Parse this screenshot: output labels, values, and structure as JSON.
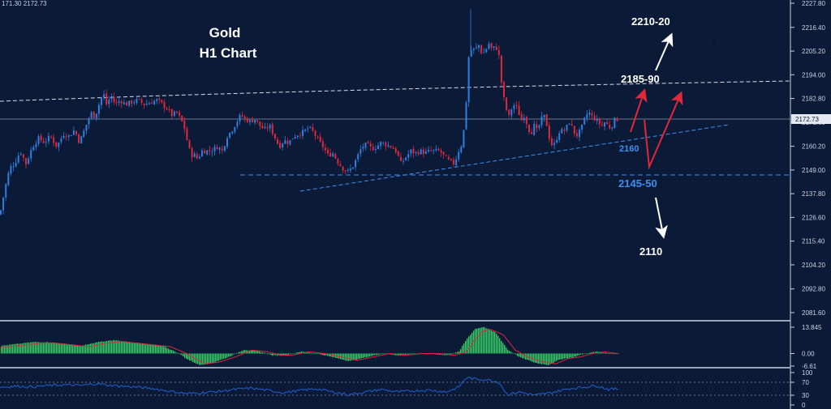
{
  "header": {
    "ohlc_text": "171.30 2172.73"
  },
  "colors": {
    "background": "#0b1a36",
    "bull": "#2f7fe0",
    "bear": "#e0283c",
    "macd_hist": "#33d36a",
    "signal": "#e0283c",
    "rsi": "#1f5fd0",
    "annotation_blue": "#3d8ff0",
    "arrow_red": "#e0283c",
    "arrow_white": "#ffffff"
  },
  "chart_data": [
    {
      "type": "candlestick",
      "title": "Gold",
      "subtitle": "H1 Chart",
      "ylim": [
        2076,
        2230
      ],
      "y_ticks": [
        2227.8,
        2216.4,
        2205.2,
        2194.0,
        2182.8,
        2171.6,
        2160.2,
        2149.0,
        2137.8,
        2126.6,
        2115.4,
        2104.2,
        2092.8,
        2081.6
      ],
      "y_tick_labels": [
        "2227.80",
        "2216.40",
        "2205.20",
        "2194.00",
        "2182.80",
        "2171.60",
        "2160.20",
        "2149.00",
        "2137.80",
        "2126.60",
        "2115.40",
        "2104.20",
        "2092.80",
        "2081.60"
      ],
      "current_price": 2172.73,
      "current_price_label": "2172.73",
      "close_path": [
        [
          0,
          2128
        ],
        [
          6,
          2140
        ],
        [
          12,
          2150
        ],
        [
          18,
          2152
        ],
        [
          25,
          2158
        ],
        [
          32,
          2152
        ],
        [
          40,
          2160
        ],
        [
          47,
          2164
        ],
        [
          55,
          2162
        ],
        [
          62,
          2165
        ],
        [
          70,
          2160
        ],
        [
          78,
          2166
        ],
        [
          85,
          2165
        ],
        [
          92,
          2168
        ],
        [
          98,
          2162
        ],
        [
          104,
          2168
        ],
        [
          108,
          2172
        ],
        [
          112,
          2176
        ],
        [
          117,
          2174
        ],
        [
          120,
          2178
        ],
        [
          124,
          2182
        ],
        [
          127,
          2186
        ],
        [
          131,
          2180
        ],
        [
          137,
          2184
        ],
        [
          142,
          2180
        ],
        [
          148,
          2182
        ],
        [
          155,
          2180
        ],
        [
          162,
          2181
        ],
        [
          170,
          2182
        ],
        [
          178,
          2180
        ],
        [
          186,
          2181
        ],
        [
          194,
          2182
        ],
        [
          200,
          2180
        ],
        [
          206,
          2178
        ],
        [
          212,
          2175
        ],
        [
          218,
          2176
        ],
        [
          224,
          2172
        ],
        [
          228,
          2168
        ],
        [
          232,
          2160
        ],
        [
          236,
          2156
        ],
        [
          240,
          2156
        ],
        [
          244,
          2154
        ],
        [
          248,
          2158
        ],
        [
          252,
          2158
        ],
        [
          260,
          2158
        ],
        [
          268,
          2160
        ],
        [
          274,
          2158
        ],
        [
          280,
          2165
        ],
        [
          286,
          2168
        ],
        [
          292,
          2172
        ],
        [
          297,
          2175
        ],
        [
          302,
          2173
        ],
        [
          308,
          2172
        ],
        [
          314,
          2173
        ],
        [
          320,
          2170
        ],
        [
          326,
          2168
        ],
        [
          332,
          2170
        ],
        [
          338,
          2165
        ],
        [
          344,
          2160
        ],
        [
          350,
          2163
        ],
        [
          356,
          2162
        ],
        [
          362,
          2165
        ],
        [
          368,
          2166
        ],
        [
          374,
          2167
        ],
        [
          380,
          2169
        ],
        [
          386,
          2167
        ],
        [
          392,
          2163
        ],
        [
          398,
          2160
        ],
        [
          404,
          2156
        ],
        [
          410,
          2157
        ],
        [
          416,
          2153
        ],
        [
          422,
          2150
        ],
        [
          428,
          2148
        ],
        [
          434,
          2150
        ],
        [
          440,
          2155
        ],
        [
          446,
          2160
        ],
        [
          452,
          2161
        ],
        [
          458,
          2159
        ],
        [
          464,
          2160
        ],
        [
          470,
          2162
        ],
        [
          476,
          2161
        ],
        [
          482,
          2160
        ],
        [
          488,
          2158
        ],
        [
          494,
          2152
        ],
        [
          500,
          2155
        ],
        [
          506,
          2158
        ],
        [
          512,
          2157
        ],
        [
          518,
          2158
        ],
        [
          524,
          2157
        ],
        [
          530,
          2158
        ],
        [
          536,
          2158
        ],
        [
          542,
          2158
        ],
        [
          548,
          2155
        ],
        [
          554,
          2153
        ],
        [
          560,
          2152
        ],
        [
          565,
          2158
        ],
        [
          570,
          2162
        ],
        [
          574,
          2178
        ],
        [
          578,
          2205
        ],
        [
          582,
          2206
        ],
        [
          586,
          2206
        ],
        [
          590,
          2208
        ],
        [
          594,
          2204
        ],
        [
          598,
          2205
        ],
        [
          602,
          2209
        ],
        [
          606,
          2206
        ],
        [
          610,
          2207
        ],
        [
          614,
          2206
        ],
        [
          618,
          2190
        ],
        [
          622,
          2180
        ],
        [
          627,
          2174
        ],
        [
          632,
          2180
        ],
        [
          638,
          2178
        ],
        [
          642,
          2172
        ],
        [
          646,
          2175
        ],
        [
          650,
          2170
        ],
        [
          654,
          2166
        ],
        [
          658,
          2170
        ],
        [
          662,
          2167
        ],
        [
          666,
          2172
        ],
        [
          670,
          2175
        ],
        [
          674,
          2170
        ],
        [
          678,
          2162
        ],
        [
          682,
          2160
        ],
        [
          686,
          2164
        ],
        [
          690,
          2168
        ],
        [
          694,
          2167
        ],
        [
          698,
          2169
        ],
        [
          702,
          2172
        ],
        [
          706,
          2168
        ],
        [
          710,
          2165
        ],
        [
          714,
          2167
        ],
        [
          718,
          2170
        ],
        [
          722,
          2175
        ],
        [
          726,
          2176
        ],
        [
          730,
          2174
        ],
        [
          734,
          2173
        ],
        [
          738,
          2171
        ],
        [
          742,
          2170
        ],
        [
          746,
          2172
        ],
        [
          750,
          2169
        ],
        [
          754,
          2170
        ],
        [
          758,
          2173
        ],
        [
          762,
          2173
        ]
      ]
    },
    {
      "type": "bar",
      "title": "",
      "ylim": [
        -6.61,
        13.845
      ],
      "y_ticks": [
        13.845,
        0.0,
        -6.61
      ],
      "y_tick_labels": [
        "13.845",
        "0.00",
        "-6.61"
      ],
      "hist_path": [
        [
          0,
          4
        ],
        [
          20,
          5
        ],
        [
          40,
          6
        ],
        [
          60,
          6
        ],
        [
          80,
          5
        ],
        [
          100,
          4
        ],
        [
          120,
          6
        ],
        [
          140,
          7
        ],
        [
          160,
          6
        ],
        [
          180,
          5
        ],
        [
          200,
          4
        ],
        [
          220,
          0
        ],
        [
          230,
          -3
        ],
        [
          245,
          -6
        ],
        [
          260,
          -5
        ],
        [
          280,
          -2
        ],
        [
          300,
          2
        ],
        [
          320,
          1
        ],
        [
          335,
          -1
        ],
        [
          350,
          -1
        ],
        [
          370,
          1
        ],
        [
          390,
          0
        ],
        [
          410,
          -2
        ],
        [
          430,
          -4
        ],
        [
          450,
          -2
        ],
        [
          470,
          0
        ],
        [
          490,
          -1
        ],
        [
          510,
          0
        ],
        [
          530,
          0
        ],
        [
          550,
          -1
        ],
        [
          565,
          1
        ],
        [
          575,
          8
        ],
        [
          585,
          13
        ],
        [
          595,
          14
        ],
        [
          610,
          11
        ],
        [
          625,
          2
        ],
        [
          640,
          -2
        ],
        [
          660,
          -5
        ],
        [
          675,
          -6
        ],
        [
          690,
          -3
        ],
        [
          705,
          -2
        ],
        [
          720,
          0
        ],
        [
          735,
          1
        ],
        [
          750,
          0
        ],
        [
          762,
          0
        ]
      ]
    },
    {
      "type": "line",
      "title": "",
      "ylim": [
        0,
        100
      ],
      "y_ticks": [
        100,
        70,
        30,
        0
      ],
      "y_tick_labels": [
        "100",
        "70",
        "30",
        "0"
      ],
      "rsi_path": [
        [
          0,
          55
        ],
        [
          20,
          58
        ],
        [
          40,
          56
        ],
        [
          60,
          60
        ],
        [
          80,
          62
        ],
        [
          100,
          60
        ],
        [
          120,
          66
        ],
        [
          130,
          62
        ],
        [
          150,
          58
        ],
        [
          170,
          55
        ],
        [
          190,
          50
        ],
        [
          210,
          42
        ],
        [
          230,
          35
        ],
        [
          250,
          38
        ],
        [
          270,
          42
        ],
        [
          290,
          48
        ],
        [
          310,
          52
        ],
        [
          330,
          45
        ],
        [
          350,
          38
        ],
        [
          370,
          45
        ],
        [
          390,
          50
        ],
        [
          410,
          40
        ],
        [
          430,
          32
        ],
        [
          450,
          40
        ],
        [
          470,
          48
        ],
        [
          490,
          40
        ],
        [
          510,
          44
        ],
        [
          530,
          46
        ],
        [
          550,
          40
        ],
        [
          565,
          55
        ],
        [
          575,
          85
        ],
        [
          585,
          80
        ],
        [
          600,
          78
        ],
        [
          615,
          70
        ],
        [
          625,
          32
        ],
        [
          640,
          40
        ],
        [
          660,
          30
        ],
        [
          680,
          38
        ],
        [
          700,
          50
        ],
        [
          720,
          55
        ],
        [
          735,
          60
        ],
        [
          750,
          48
        ],
        [
          762,
          50
        ]
      ]
    }
  ],
  "annotations": {
    "title": "Gold",
    "subtitle": "H1 Chart",
    "l_2210": "2210-20",
    "l_2185": "2185-90",
    "l_2160": "2160",
    "l_2145": "2145-50",
    "l_2110": "2110"
  }
}
